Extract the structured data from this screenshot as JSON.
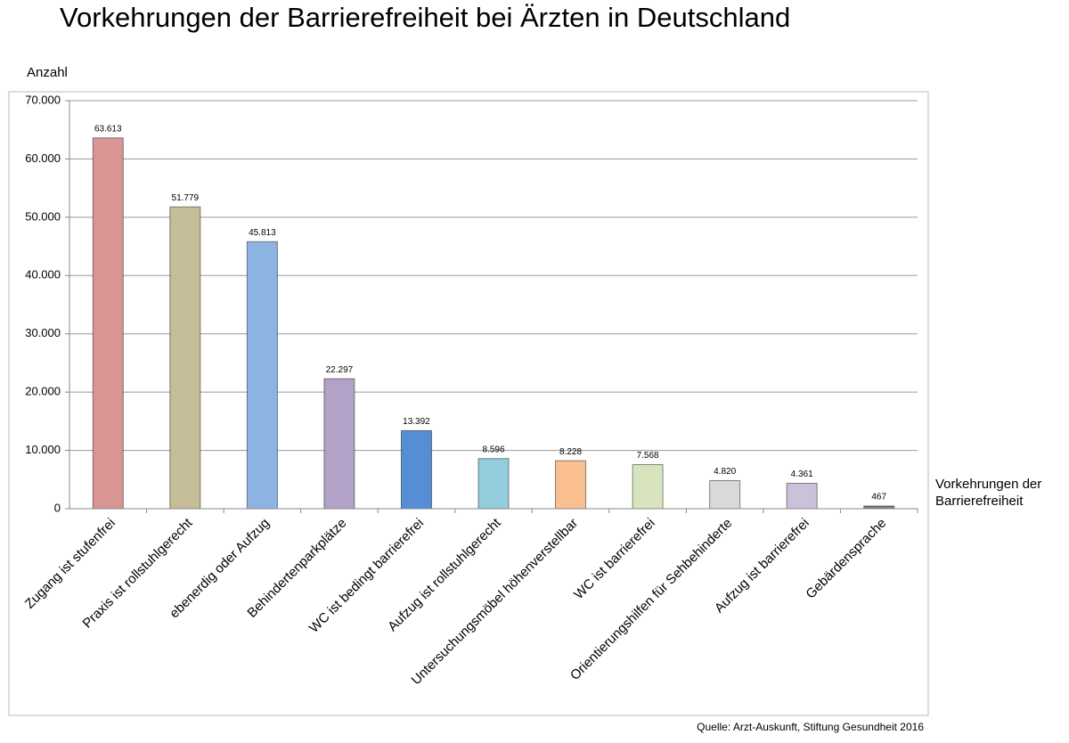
{
  "chart_data": {
    "type": "bar",
    "title": "Vorkehrungen der Barrierefreiheit bei Ärzten in Deutschland",
    "y_label": "Anzahl",
    "x_label": "Vorkehrungen der Barrierefreiheit",
    "source": "Quelle: Arzt-Auskunft, Stiftung Gesundheit 2016",
    "categories": [
      "Zugang ist stufenfrei",
      "Praxis ist rollstuhlgerecht",
      "ebenerdig oder Aufzug",
      "Behindertenparkplätze",
      "WC ist bedingt barrierefrei",
      "Aufzug ist rollstuhlgerecht",
      "Untersuchungsmöbel höhenverstellbar",
      "WC ist barrierefrei",
      "Orientierungshilfen für Sehbehinderte",
      "Aufzug ist barrierefrei",
      "Gebärdensprache"
    ],
    "values": [
      63613,
      51779,
      45813,
      22297,
      13392,
      8596,
      8228,
      7568,
      4820,
      4361,
      467
    ],
    "value_labels": [
      "63.613",
      "51.779",
      "45.813",
      "22.297",
      "13.392",
      "8.596",
      "8.228",
      "7.568",
      "4.820",
      "4.361",
      "467"
    ],
    "colors": [
      "#d99594",
      "#c4bd97",
      "#8db3e2",
      "#b2a2c7",
      "#558ed5",
      "#93cddd",
      "#fac090",
      "#d7e4bd",
      "#d9d9d9",
      "#ccc1da",
      "#7f7f7f"
    ],
    "ylim": [
      0,
      70000
    ],
    "yticks": [
      0,
      {
        "value": 10000,
        "label": "10.000"
      },
      {
        "value": 20000,
        "label": "20.000"
      },
      {
        "value": 30000,
        "label": "30.000"
      },
      {
        "value": 40000,
        "label": "40.000"
      },
      {
        "value": 50000,
        "label": "50.000"
      },
      {
        "value": 60000,
        "label": "60.000"
      },
      {
        "value": 70000,
        "label": "70.000"
      }
    ],
    "grid": true
  }
}
